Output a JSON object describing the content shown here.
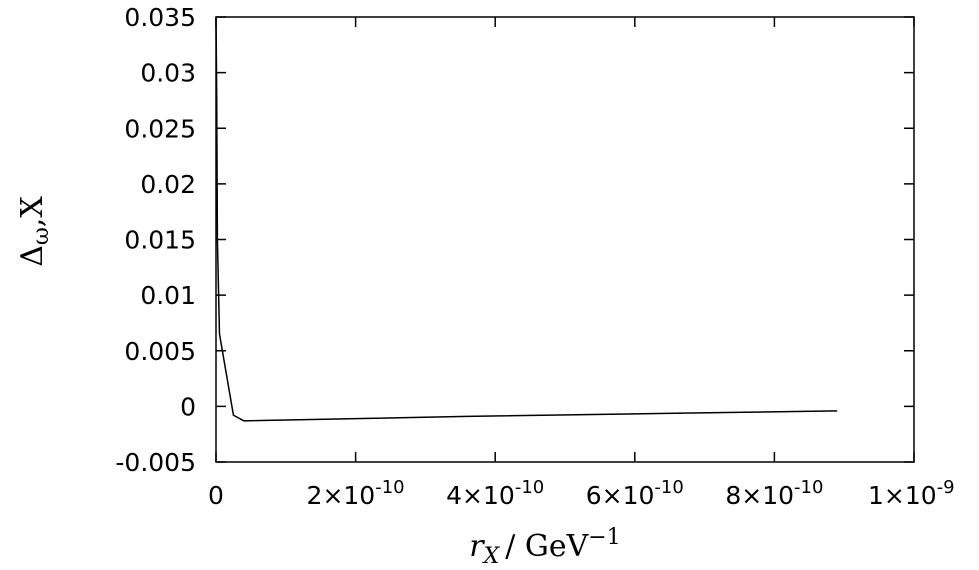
{
  "chart_data": {
    "type": "line",
    "title": "",
    "xlabel": {
      "var": "r",
      "sub": "X",
      "unit": "/ GeV",
      "sup": "−1"
    },
    "ylabel": {
      "var": "Δ",
      "sub": "ω",
      "rest": ",X"
    },
    "xlim": [
      0,
      1e-09
    ],
    "ylim": [
      -0.005,
      0.035
    ],
    "grid": false,
    "xticks": [
      {
        "value": 0,
        "label": "0"
      },
      {
        "value": 2e-10,
        "label": "2×10",
        "exp": "-10"
      },
      {
        "value": 4e-10,
        "label": "4×10",
        "exp": "-10"
      },
      {
        "value": 6e-10,
        "label": "6×10",
        "exp": "-10"
      },
      {
        "value": 8e-10,
        "label": "8×10",
        "exp": "-10"
      },
      {
        "value": 1e-09,
        "label": "1×10",
        "exp": "-9"
      }
    ],
    "yticks": [
      {
        "value": -0.005,
        "label": "-0.005"
      },
      {
        "value": 0,
        "label": "0"
      },
      {
        "value": 0.005,
        "label": "0.005"
      },
      {
        "value": 0.01,
        "label": "0.01"
      },
      {
        "value": 0.015,
        "label": "0.015"
      },
      {
        "value": 0.02,
        "label": "0.02"
      },
      {
        "value": 0.025,
        "label": "0.025"
      },
      {
        "value": 0.03,
        "label": "0.03"
      },
      {
        "value": 0.035,
        "label": "0.035"
      }
    ],
    "series": [
      {
        "color": "#000000",
        "x": [
          0,
          1e-12,
          2e-12,
          5e-12,
          2.5e-11,
          4e-11,
          3.6e-10,
          6.8e-10,
          8.9e-10
        ],
        "y": [
          0.035,
          0.028,
          0.015,
          0.0065,
          -0.0008,
          -0.0013,
          -0.0009,
          -0.0006,
          -0.0004
        ]
      }
    ]
  }
}
